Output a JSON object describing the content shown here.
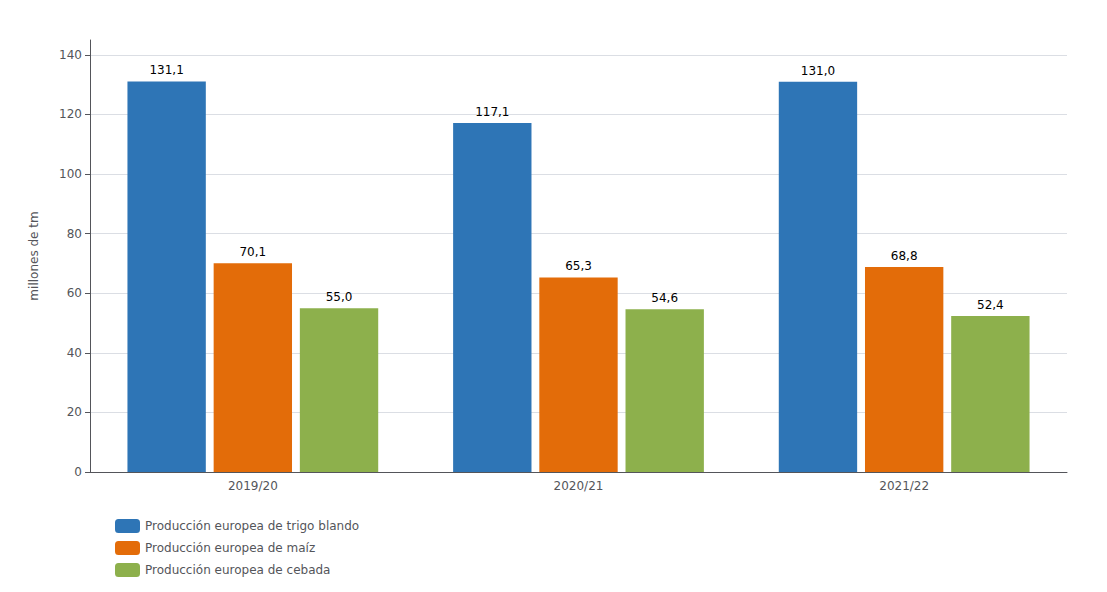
{
  "chart_data": {
    "type": "bar",
    "categories": [
      "2019/20",
      "2020/21",
      "2021/22"
    ],
    "series": [
      {
        "name": "Producción europea de trigo blando",
        "color": "#2E75B6",
        "values": [
          131.1,
          117.1,
          131.0
        ],
        "value_labels": [
          "131,1",
          "117,1",
          "131,0"
        ]
      },
      {
        "name": "Producción europea de maíz",
        "color": "#E36C09",
        "values": [
          70.1,
          65.3,
          68.8
        ],
        "value_labels": [
          "70,1",
          "65,3",
          "68,8"
        ]
      },
      {
        "name": "Producción europea de cebada",
        "color": "#8DB04C",
        "values": [
          55.0,
          54.6,
          52.4
        ],
        "value_labels": [
          "55,0",
          "54,6",
          "52,4"
        ]
      }
    ],
    "ylabel": "millones de tm",
    "ylim": [
      0,
      145
    ],
    "yticks": [
      0,
      20,
      40,
      60,
      80,
      100,
      120,
      140
    ],
    "grid": true,
    "legend": "bottom",
    "data_labels": true
  }
}
